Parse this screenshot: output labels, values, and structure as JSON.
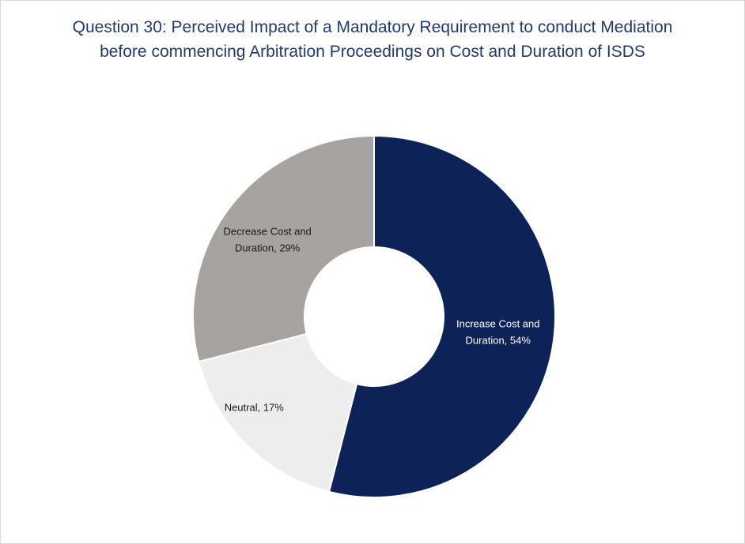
{
  "chart_data": {
    "type": "pie",
    "title": "Question 30: Perceived Impact of a Mandatory Requirement to conduct Mediation before commencing Arbitration Proceedings on Cost and Duration of ISDS",
    "categories": [
      "Increase Cost and Duration",
      "Neutral",
      "Decrease Cost and Duration"
    ],
    "values": [
      54,
      17,
      29
    ],
    "unit": "%",
    "labels": [
      "Increase Cost and\nDuration, 54%",
      "Neutral, 17%",
      "Decrease Cost and\nDuration, 29%"
    ],
    "colors": [
      "#0d2257",
      "#ededed",
      "#a7a3a0"
    ],
    "label_colors": [
      "#ffffff",
      "#1a1a1a",
      "#1a1a1a"
    ],
    "donut": true,
    "legend": "none"
  }
}
